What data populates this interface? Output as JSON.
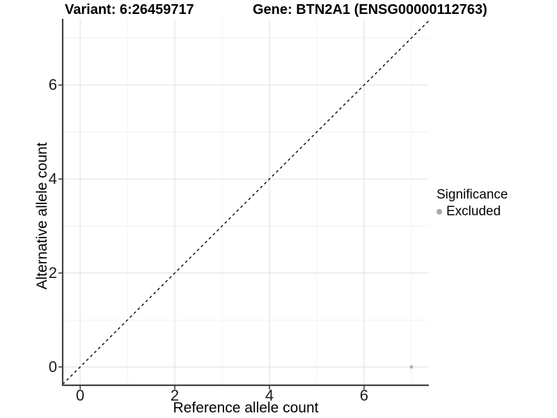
{
  "chart_data": {
    "type": "scatter",
    "titles": {
      "left": "Variant: 6:26459717",
      "right": "Gene: BTN2A1 (ENSG00000112763)"
    },
    "xlabel": "Reference allele count",
    "ylabel": "Alternative allele count",
    "x_tick_labels": [
      "0",
      "2",
      "4",
      "6"
    ],
    "y_tick_labels": [
      "0",
      "2",
      "4",
      "6"
    ],
    "x_tick_values": [
      0,
      2,
      4,
      6
    ],
    "y_tick_values": [
      0,
      2,
      4,
      6
    ],
    "x_minor_values": [
      1,
      3,
      5,
      7
    ],
    "y_minor_values": [
      1,
      3,
      5,
      7
    ],
    "xlim": [
      -0.37,
      7.37
    ],
    "ylim": [
      -0.39,
      7.41
    ],
    "grid": "major+minor",
    "legend_position": "right",
    "reference_line": {
      "type": "identity y=x",
      "style": "dashed",
      "color": "#111111",
      "width": 1.5
    },
    "legend": {
      "title": "Significance",
      "items": [
        {
          "label": "Excluded",
          "color": "#a8a8a8"
        }
      ]
    },
    "series": [
      {
        "name": "Excluded",
        "color": "#b4b4b4",
        "point_radius": 2.6,
        "points": [
          [
            7,
            0
          ]
        ]
      }
    ],
    "colors": {
      "background": "#ffffff",
      "grid_major": "#e3e3e3",
      "grid_minor": "#f1f1f1",
      "axis_line": "#404040",
      "tick_mark": "#333333",
      "text": "#000000"
    }
  }
}
